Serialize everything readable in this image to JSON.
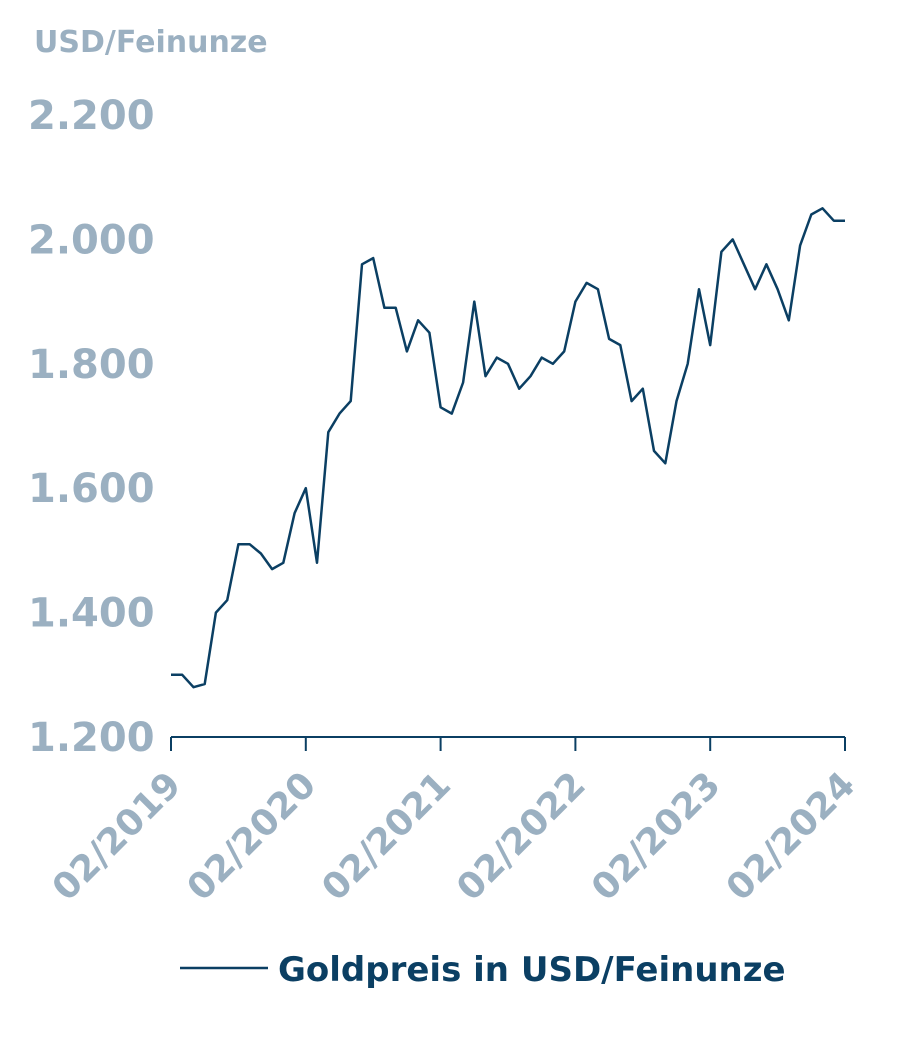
{
  "chart_data": {
    "type": "line",
    "y_axis_label": "USD/Feinunze",
    "x": [
      "02/2019",
      "03/2019",
      "04/2019",
      "05/2019",
      "06/2019",
      "07/2019",
      "08/2019",
      "09/2019",
      "10/2019",
      "11/2019",
      "12/2019",
      "01/2020",
      "02/2020",
      "03/2020",
      "04/2020",
      "05/2020",
      "06/2020",
      "07/2020",
      "08/2020",
      "09/2020",
      "10/2020",
      "11/2020",
      "12/2020",
      "01/2021",
      "02/2021",
      "03/2021",
      "04/2021",
      "05/2021",
      "06/2021",
      "07/2021",
      "08/2021",
      "09/2021",
      "10/2021",
      "11/2021",
      "12/2021",
      "01/2022",
      "02/2022",
      "03/2022",
      "04/2022",
      "05/2022",
      "06/2022",
      "07/2022",
      "08/2022",
      "09/2022",
      "10/2022",
      "11/2022",
      "12/2022",
      "01/2023",
      "02/2023",
      "03/2023",
      "04/2023",
      "05/2023",
      "06/2023",
      "07/2023",
      "08/2023",
      "09/2023",
      "10/2023",
      "11/2023",
      "12/2023",
      "01/2024",
      "02/2024"
    ],
    "series": [
      {
        "name": "Goldpreis in USD/Feinunze",
        "color": "#0b3f63",
        "values": [
          1300,
          1300,
          1280,
          1285,
          1400,
          1420,
          1510,
          1510,
          1495,
          1470,
          1480,
          1560,
          1600,
          1480,
          1690,
          1720,
          1740,
          1960,
          1970,
          1890,
          1890,
          1820,
          1870,
          1850,
          1730,
          1720,
          1770,
          1900,
          1780,
          1810,
          1800,
          1760,
          1780,
          1810,
          1800,
          1820,
          1900,
          1930,
          1920,
          1840,
          1830,
          1740,
          1760,
          1660,
          1640,
          1740,
          1800,
          1920,
          1830,
          1980,
          2000,
          1960,
          1920,
          1960,
          1920,
          1870,
          1990,
          2040,
          2050,
          2030,
          2030
        ]
      }
    ],
    "xlim": [
      "02/2019",
      "02/2024"
    ],
    "xticks": [
      "02/2019",
      "02/2020",
      "02/2021",
      "02/2022",
      "02/2023",
      "02/2024"
    ],
    "ylim": [
      1200,
      2200
    ],
    "yticks": [
      {
        "value": 1200,
        "label": "1.200"
      },
      {
        "value": 1400,
        "label": "1.400"
      },
      {
        "value": 1600,
        "label": "1.600"
      },
      {
        "value": 1800,
        "label": "1.800"
      },
      {
        "value": 2000,
        "label": "2.000"
      },
      {
        "value": 2200,
        "label": "2.200"
      }
    ],
    "grid": false
  }
}
